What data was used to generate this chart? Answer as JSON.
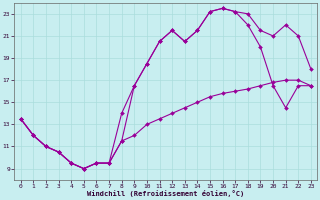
{
  "xlabel": "Windchill (Refroidissement éolien,°C)",
  "bg_color": "#c8eef0",
  "line_color": "#990099",
  "marker_color": "#990099",
  "grid_color": "#aadddd",
  "xlim": [
    -0.5,
    23.5
  ],
  "ylim": [
    8.0,
    24.0
  ],
  "xticks": [
    0,
    1,
    2,
    3,
    4,
    5,
    6,
    7,
    8,
    9,
    10,
    11,
    12,
    13,
    14,
    15,
    16,
    17,
    18,
    19,
    20,
    21,
    22,
    23
  ],
  "yticks": [
    9,
    11,
    13,
    15,
    17,
    19,
    21,
    23
  ],
  "curve1_x": [
    0,
    1,
    2,
    3,
    4,
    5,
    6,
    7,
    8,
    9,
    10,
    11,
    12,
    13,
    14,
    15,
    16,
    17,
    18,
    19,
    20,
    21,
    22,
    23
  ],
  "curve1_y": [
    13.5,
    12.0,
    11.0,
    10.5,
    9.5,
    9.0,
    9.5,
    9.5,
    11.5,
    16.5,
    18.5,
    20.5,
    21.5,
    20.5,
    21.5,
    23.2,
    23.5,
    23.2,
    23.0,
    21.5,
    21.0,
    22.0,
    21.0,
    18.0
  ],
  "curve2_x": [
    0,
    1,
    2,
    3,
    4,
    5,
    6,
    7,
    8,
    9,
    10,
    11,
    12,
    13,
    14,
    15,
    16,
    17,
    18,
    19,
    20,
    21,
    22,
    23
  ],
  "curve2_y": [
    13.5,
    12.0,
    11.0,
    10.5,
    9.5,
    9.0,
    9.5,
    9.5,
    14.0,
    16.5,
    18.5,
    20.5,
    21.5,
    20.5,
    21.5,
    23.2,
    23.5,
    23.2,
    22.0,
    20.0,
    16.5,
    14.5,
    16.5,
    16.5
  ],
  "curve3_x": [
    0,
    1,
    2,
    3,
    4,
    5,
    6,
    7,
    8,
    9,
    10,
    11,
    12,
    13,
    14,
    15,
    16,
    17,
    18,
    19,
    20,
    21,
    22,
    23
  ],
  "curve3_y": [
    13.5,
    12.0,
    11.0,
    10.5,
    9.5,
    9.0,
    9.5,
    9.5,
    11.5,
    12.0,
    13.0,
    13.5,
    14.0,
    14.5,
    15.0,
    15.5,
    15.8,
    16.0,
    16.2,
    16.5,
    16.8,
    17.0,
    17.0,
    16.5
  ]
}
